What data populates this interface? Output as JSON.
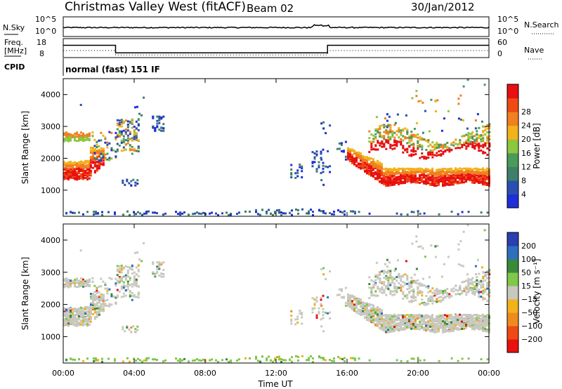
{
  "header": {
    "station": "Christmas Valley West (fitACF)",
    "beam": "Beam 02",
    "date": "30/Jan/2012"
  },
  "panels": {
    "nsky_label": "N.Sky",
    "nsearch_label": "N.Search",
    "log_top_left": "10^5",
    "log_bottom_left": "10^0",
    "log_top_right": "10^5",
    "log_bottom_right": "10^0",
    "freq_label_1": "Freq.",
    "freq_label_2": "[MHz]",
    "freq_top": "18",
    "freq_bottom": "8",
    "nave_label": "Nave",
    "nave_top": "60",
    "nave_bottom": "0",
    "cpid_label": "CPID",
    "cpid_value": "normal (fast) 151 IF"
  },
  "colors": {
    "power": [
      "#1f2fd8",
      "#2b4fb0",
      "#3f7f6a",
      "#4a9a5a",
      "#8ec640",
      "#f2b21c",
      "#f08020",
      "#ee4a14",
      "#e81010"
    ],
    "velocity": [
      "#2a3fb0",
      "#2e6fbe",
      "#3a8a3a",
      "#7fc84a",
      "#c8c8c0",
      "#f2b21c",
      "#f08a20",
      "#ee4a14",
      "#e81010"
    ]
  },
  "chart_data": [
    {
      "type": "heatmap",
      "id": "power",
      "ylabel": "Slant Range [km]",
      "xlim": [
        0,
        24
      ],
      "ylim": [
        180,
        4500
      ],
      "yticks": [
        "1000",
        "2000",
        "3000",
        "4000"
      ],
      "colorbar": {
        "label": "Power [dB]",
        "ticks": [
          "4",
          "8",
          "12",
          "16",
          "20",
          "24",
          "28"
        ]
      },
      "features": [
        {
          "t0": 0.0,
          "t1": 1.5,
          "r0": 1300,
          "r1": 1900,
          "level": "high"
        },
        {
          "t0": 0.0,
          "t1": 1.5,
          "r0": 2500,
          "r1": 2800,
          "level": "mid"
        },
        {
          "t0": 1.6,
          "t1": 3.0,
          "r0": 1900,
          "r1": 2800,
          "level": "mixed"
        },
        {
          "t0": 3.0,
          "t1": 4.2,
          "r0": 2100,
          "r1": 3200,
          "level": "mixed"
        },
        {
          "t0": 5.0,
          "t1": 5.7,
          "r0": 2800,
          "r1": 3300,
          "level": "low"
        },
        {
          "t0": 12.8,
          "t1": 15.8,
          "r0": 1000,
          "r1": 3300,
          "level": "low"
        },
        {
          "t0": 16.0,
          "t1": 24.0,
          "r0": 1100,
          "r1": 2300,
          "level": "high"
        },
        {
          "t0": 17.2,
          "t1": 24.0,
          "r0": 1800,
          "r1": 3500,
          "level": "mid"
        }
      ]
    },
    {
      "type": "heatmap",
      "id": "velocity",
      "ylabel": "Slant Range [km]",
      "xlabel": "Time UT",
      "xlim": [
        0,
        24
      ],
      "ylim": [
        180,
        4500
      ],
      "xticks": [
        "00:00",
        "04:00",
        "08:00",
        "12:00",
        "16:00",
        "20:00",
        "00:00"
      ],
      "yticks": [
        "1000",
        "2000",
        "3000",
        "4000"
      ],
      "colorbar": {
        "label": "Velocity [m s⁻¹]",
        "ticks": [
          "200",
          "100",
          "50",
          "15",
          "−15",
          "−50",
          "−100",
          "−200"
        ]
      }
    }
  ]
}
